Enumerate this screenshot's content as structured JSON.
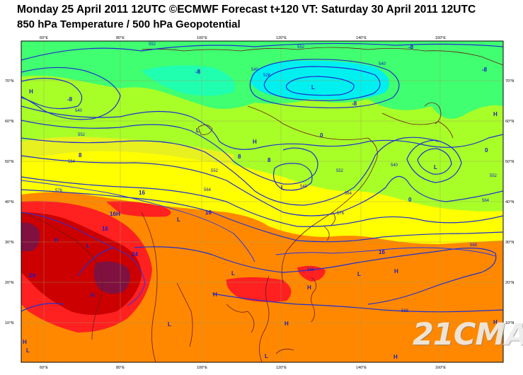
{
  "header": {
    "line1": "Monday 25 April 2011 12UTC ©ECMWF Forecast t+120 VT: Saturday 30 April 2011 12UTC",
    "line2": "850 hPa Temperature / 500 hPa Geopotential"
  },
  "axes": {
    "lon_labels": [
      "60°E",
      "80°E",
      "100°E",
      "120°E",
      "140°E",
      "160°E"
    ],
    "lat_labels": [
      "70°N",
      "60°N",
      "50°N",
      "40°N",
      "30°N",
      "20°N",
      "10°N"
    ]
  },
  "geopotential_labels": [
    "552",
    "552",
    "540",
    "528",
    "552",
    "540",
    "540",
    "552",
    "564",
    "576",
    "540",
    "552",
    "564",
    "576",
    "540",
    "552",
    "564",
    "588",
    "588",
    "588",
    "564"
  ],
  "temperature_labels": [
    "-8",
    "-8",
    "-8",
    "-8",
    "-8",
    "0",
    "0",
    "0",
    "8",
    "8",
    "8",
    "16",
    "16",
    "16",
    "16",
    "24",
    "24",
    "16"
  ],
  "pressure_centers": [
    "H",
    "L",
    "H",
    "L",
    "L",
    "H",
    "H",
    "H",
    "L",
    "L",
    "H",
    "H",
    "L",
    "H",
    "H",
    "H",
    "H",
    "H",
    "L",
    "L",
    "L",
    "L",
    "L",
    "H"
  ],
  "watermark": "21CMA",
  "colors": {
    "t_cold": "#00f0f0",
    "t_cool": "#40ff70",
    "t_mild": "#a8ff28",
    "t_warm": "#ffff00",
    "t_hot": "#ff8800",
    "t_veryhot": "#ff2020",
    "t_extreme": "#cc0000",
    "contour": "#2030d0",
    "coast": "#6b1a1a"
  }
}
